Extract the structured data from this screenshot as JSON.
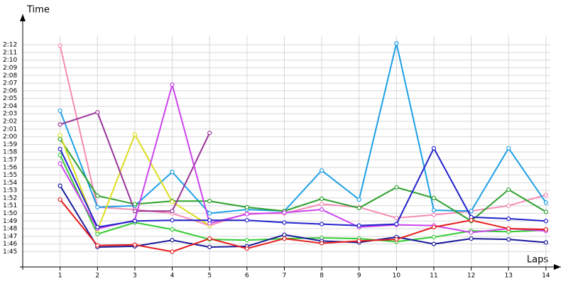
{
  "chart_data": {
    "type": "line",
    "y_label": "Time",
    "x_label": "Laps",
    "x": [
      1,
      2,
      3,
      4,
      5,
      6,
      7,
      8,
      9,
      10,
      11,
      12,
      13,
      14
    ],
    "xlim": [
      0,
      14.4
    ],
    "xticks": [
      1,
      2,
      3,
      4,
      5,
      6,
      7,
      8,
      9,
      10,
      11,
      12,
      13,
      14
    ],
    "ylim": [
      103,
      136
    ],
    "yticks": [
      {
        "value": 105,
        "label": "1:45"
      },
      {
        "value": 106,
        "label": "1:46"
      },
      {
        "value": 107,
        "label": "1:47"
      },
      {
        "value": 108,
        "label": "1:48"
      },
      {
        "value": 109,
        "label": "1:49"
      },
      {
        "value": 110,
        "label": "1:50"
      },
      {
        "value": 111,
        "label": "1:51"
      },
      {
        "value": 112,
        "label": "1:52"
      },
      {
        "value": 113,
        "label": "1:53"
      },
      {
        "value": 114,
        "label": "1:54"
      },
      {
        "value": 115,
        "label": "1:55"
      },
      {
        "value": 116,
        "label": "1:56"
      },
      {
        "value": 117,
        "label": "1:57"
      },
      {
        "value": 118,
        "label": "1:58"
      },
      {
        "value": 119,
        "label": "1:59"
      },
      {
        "value": 120,
        "label": "2:00"
      },
      {
        "value": 121,
        "label": "2:01"
      },
      {
        "value": 122,
        "label": "2:02"
      },
      {
        "value": 123,
        "label": "2:03"
      },
      {
        "value": 124,
        "label": "2:04"
      },
      {
        "value": 125,
        "label": "2:05"
      },
      {
        "value": 126,
        "label": "2:06"
      },
      {
        "value": 127,
        "label": "2:07"
      },
      {
        "value": 128,
        "label": "2:08"
      },
      {
        "value": 129,
        "label": "2:09"
      },
      {
        "value": 130,
        "label": "2:10"
      },
      {
        "value": 131,
        "label": "2:11"
      },
      {
        "value": 132,
        "label": "2:12"
      }
    ],
    "grid": true,
    "series": [
      {
        "color": "#f48cb4",
        "values": [
          131.9,
          110.8,
          110.5,
          110,
          108.4,
          110,
          110,
          111.2,
          110.8,
          109.4,
          109.8,
          110.3,
          111,
          112.4
        ]
      },
      {
        "color": "#1ea0e6",
        "values": [
          123.4,
          110.8,
          111,
          115.4,
          110,
          110.5,
          110.3,
          115.6,
          111.8,
          132.2,
          110.4,
          110.3,
          118.5,
          111.4
        ]
      },
      {
        "color": "#2ca02c",
        "values": [
          119.7,
          112.3,
          111.2,
          111.6,
          111.6,
          110.8,
          110.3,
          111.9,
          110.7,
          113.4,
          112,
          109,
          113.1,
          110.2
        ]
      },
      {
        "color": "#33cc33",
        "values": [
          117.6,
          107.3,
          108.8,
          107.9,
          106.6,
          106.5,
          106.7,
          106.8,
          106.7,
          106.3,
          106.9,
          107.7,
          107.6,
          107.8
        ]
      },
      {
        "color": "#dddd22",
        "values": [
          120.2,
          107.8,
          120.3,
          111.5,
          108.4,
          null,
          null,
          null,
          null,
          null,
          null,
          null,
          null,
          null
        ]
      },
      {
        "color": "#993399",
        "values": [
          121.6,
          123.2,
          110.3,
          110.3,
          120.5,
          null,
          null,
          null,
          null,
          null,
          null,
          null,
          null,
          null
        ]
      },
      {
        "color": "#cc44ee",
        "values": [
          116.5,
          108,
          109.1,
          126.8,
          108.7,
          109.9,
          110.1,
          110.5,
          108.2,
          108.5,
          108.4,
          107.5,
          108,
          107.7
        ]
      },
      {
        "color": "#2222cc",
        "values": [
          118.4,
          108.2,
          109,
          109.1,
          109.1,
          109.1,
          108.8,
          108.6,
          108.4,
          108.6,
          118.5,
          109.5,
          109.3,
          109
        ]
      },
      {
        "color": "#1a1a99",
        "values": [
          113.6,
          105.6,
          105.7,
          106.5,
          105.6,
          105.7,
          107.2,
          106.4,
          106.2,
          106.9,
          106,
          106.7,
          106.6,
          106.2
        ]
      },
      {
        "color": "#e61e1e",
        "values": [
          111.8,
          105.8,
          105.9,
          105,
          106.7,
          105.4,
          106.7,
          106.1,
          106.4,
          106.6,
          108.2,
          109.1,
          108,
          107.9
        ]
      }
    ]
  }
}
